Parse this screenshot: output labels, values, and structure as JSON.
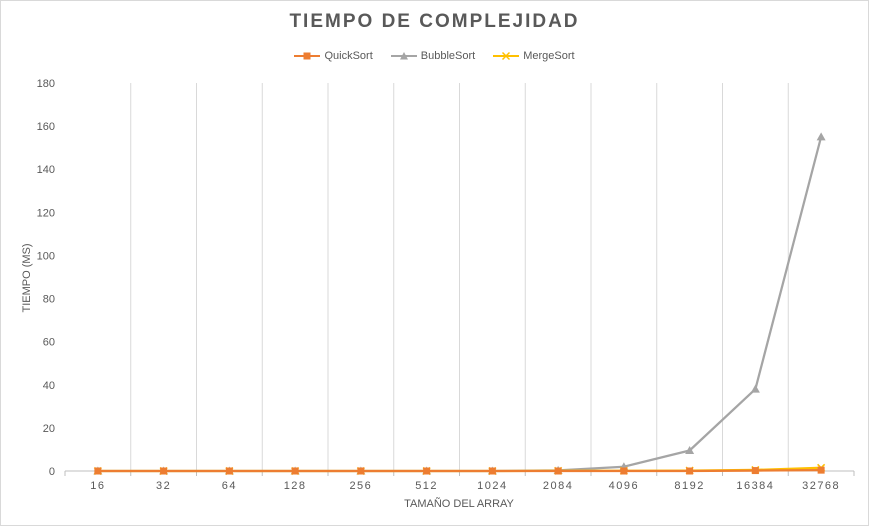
{
  "chart_data": {
    "type": "line",
    "title": "TIEMPO DE COMPLEJIDAD",
    "xlabel": "TAMAÑO DEL ARRAY",
    "ylabel": "TIEMPO (MS)",
    "categories": [
      "16",
      "32",
      "64",
      "128",
      "256",
      "512",
      "1024",
      "2084",
      "4096",
      "8192",
      "16384",
      "32768"
    ],
    "ylim": [
      0,
      180
    ],
    "yticks": [
      0,
      20,
      40,
      60,
      80,
      100,
      120,
      140,
      160,
      180
    ],
    "grid": "vertical",
    "legend_position": "top",
    "series": [
      {
        "name": "QuickSort",
        "color": "#ED7D31",
        "marker": "square",
        "values": [
          0,
          0,
          0,
          0,
          0,
          0,
          0,
          0,
          0,
          0,
          0.2,
          0.4
        ]
      },
      {
        "name": "BubbleSort",
        "color": "#A5A5A5",
        "marker": "triangle",
        "values": [
          0,
          0,
          0,
          0,
          0,
          0,
          0,
          0.3,
          2,
          9.5,
          38,
          155
        ]
      },
      {
        "name": "MergeSort",
        "color": "#FFC000",
        "marker": "x",
        "values": [
          0,
          0,
          0,
          0,
          0,
          0,
          0,
          0.1,
          0.1,
          0.2,
          0.5,
          1.5
        ]
      }
    ]
  }
}
